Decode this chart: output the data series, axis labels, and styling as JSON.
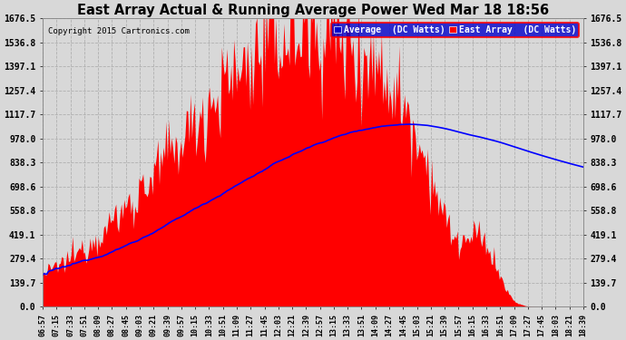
{
  "title": "East Array Actual & Running Average Power Wed Mar 18 18:56",
  "copyright": "Copyright 2015 Cartronics.com",
  "legend_avg": "Average  (DC Watts)",
  "legend_east": "East Array  (DC Watts)",
  "yticks": [
    0.0,
    139.7,
    279.4,
    419.1,
    558.8,
    698.6,
    838.3,
    978.0,
    1117.7,
    1257.4,
    1397.1,
    1536.8,
    1676.5
  ],
  "ymax": 1676.5,
  "bg_color": "#d8d8d8",
  "fill_color": "#ff0000",
  "avg_line_color": "#0000ff",
  "title_color": "#000000",
  "grid_color": "#b0b0b0",
  "xtick_labels": [
    "06:57",
    "07:15",
    "07:33",
    "07:51",
    "08:09",
    "08:27",
    "08:45",
    "09:03",
    "09:21",
    "09:39",
    "09:57",
    "10:15",
    "10:33",
    "10:51",
    "11:09",
    "11:27",
    "11:45",
    "12:03",
    "12:21",
    "12:39",
    "12:57",
    "13:15",
    "13:33",
    "13:51",
    "14:09",
    "14:27",
    "14:45",
    "15:03",
    "15:21",
    "15:39",
    "15:57",
    "16:15",
    "16:33",
    "16:51",
    "17:09",
    "17:27",
    "17:45",
    "18:03",
    "18:21",
    "18:39"
  ]
}
